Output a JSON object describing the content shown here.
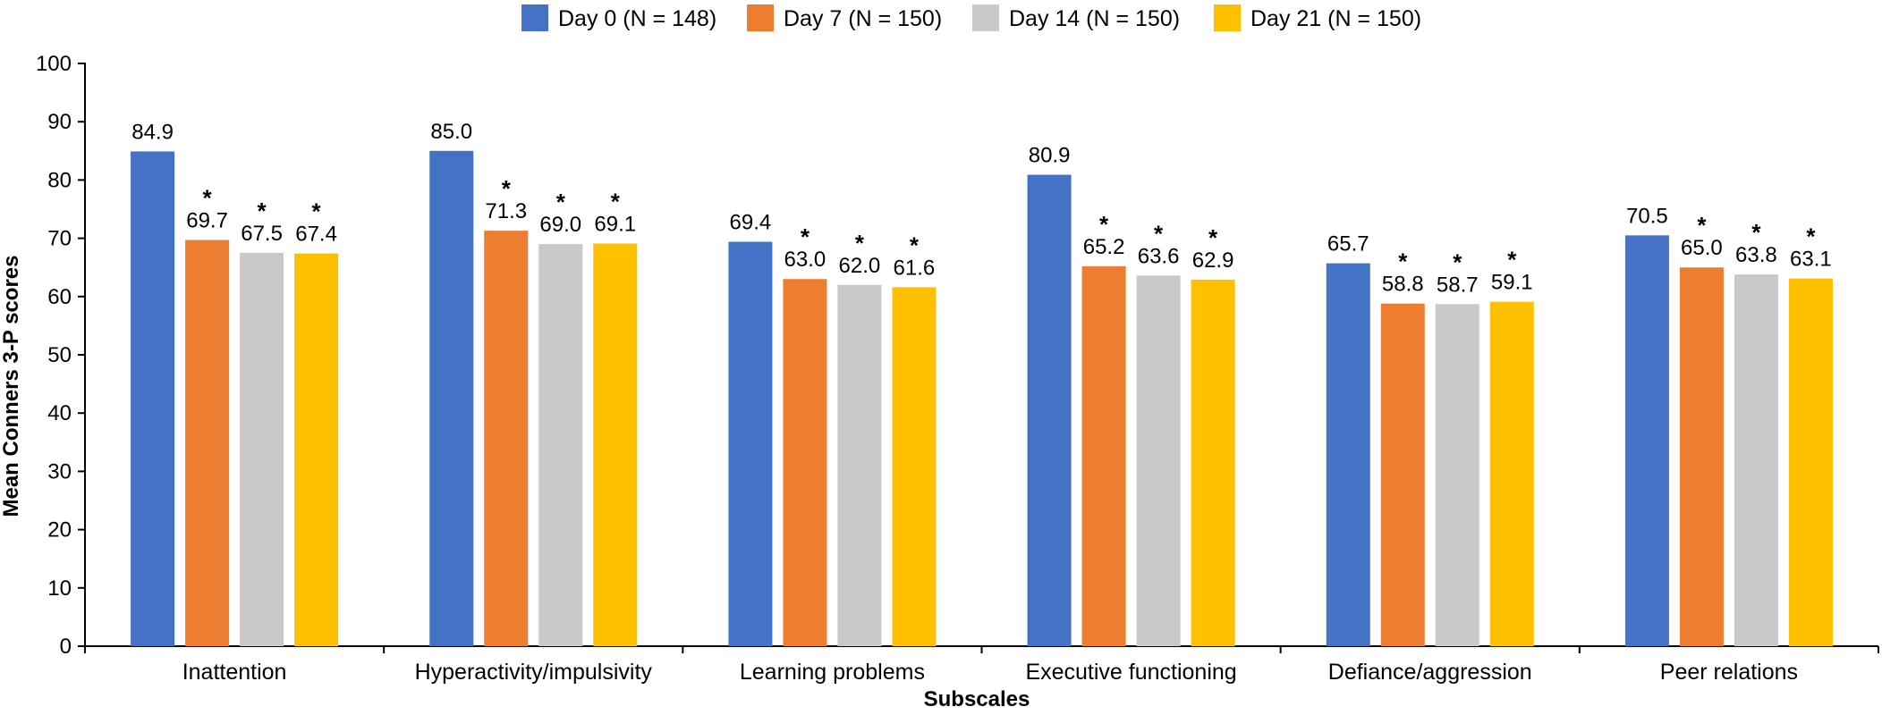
{
  "chart_data": {
    "type": "bar",
    "title": "",
    "xlabel": "Subscales",
    "ylabel": "Mean Conners 3-P scores",
    "ylim": [
      0,
      100
    ],
    "yticks": [
      0,
      10,
      20,
      30,
      40,
      50,
      60,
      70,
      80,
      90,
      100
    ],
    "grid": false,
    "legend_position": "top-center",
    "categories": [
      "Inattention",
      "Hyperactivity/impulsivity",
      "Learning problems",
      "Executive functioning",
      "Defiance/aggression",
      "Peer relations"
    ],
    "series": [
      {
        "name": "Day 0 (N = 148)",
        "color": "#4472C4",
        "values": [
          84.9,
          85.0,
          69.4,
          80.9,
          65.7,
          70.5
        ],
        "labels": [
          "84.9",
          "85.0",
          "69.4",
          "80.9",
          "65.7",
          "70.5"
        ],
        "significant": false
      },
      {
        "name": "Day 7 (N = 150)",
        "color": "#ED7D31",
        "values": [
          69.7,
          71.3,
          63.0,
          65.2,
          58.8,
          65.0
        ],
        "labels": [
          "69.7",
          "71.3",
          "63.0",
          "65.2",
          "58.8",
          "65.0"
        ],
        "significant": true
      },
      {
        "name": "Day 14 (N = 150)",
        "color": "#C9C9C9",
        "values": [
          67.5,
          69.0,
          62.0,
          63.6,
          58.7,
          63.8
        ],
        "labels": [
          "67.5",
          "69.0",
          "62.0",
          "63.6",
          "58.7",
          "63.8"
        ],
        "significant": true
      },
      {
        "name": "Day 21 (N = 150)",
        "color": "#FFC000",
        "values": [
          67.4,
          69.1,
          61.6,
          62.9,
          59.1,
          63.1
        ],
        "labels": [
          "67.4",
          "69.1",
          "61.6",
          "62.9",
          "59.1",
          "63.1"
        ],
        "significant": true
      }
    ],
    "significance_marker": "*"
  }
}
